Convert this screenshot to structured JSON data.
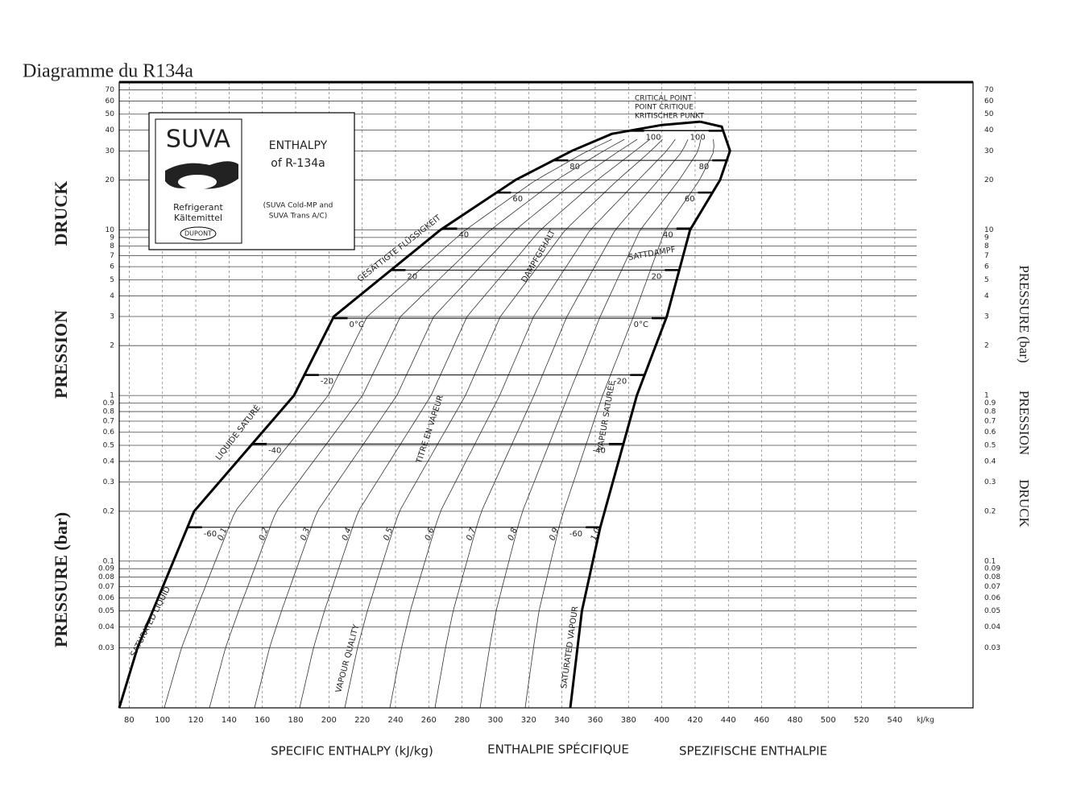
{
  "title": "Diagramme du R134a",
  "chart_data": {
    "type": "line",
    "log_y": true,
    "grid": true,
    "x_label": "SPECIFIC ENTHALPY (kJ/kg)",
    "x_label_fr": "ENTHALPIE SPÉCIFIQUE",
    "x_label_de": "SPEZIFISCHE ENTHALPIE",
    "x_unit": "kJ/kg",
    "y_label": "PRESSURE (bar)",
    "y_label_fr": "PRESSION",
    "y_label_de": "DRUCK",
    "xlim": [
      74,
      587
    ],
    "ylim": [
      0.013,
      78
    ],
    "xticks": [
      80,
      100,
      120,
      140,
      160,
      180,
      200,
      220,
      240,
      260,
      280,
      300,
      320,
      340,
      360,
      380,
      400,
      420,
      440,
      460,
      480,
      500,
      520,
      540
    ],
    "yticks": [
      0.03,
      0.04,
      0.05,
      0.06,
      0.07,
      0.08,
      0.09,
      0.1,
      0.2,
      0.3,
      0.4,
      0.5,
      0.6,
      0.7,
      0.8,
      0.9,
      1,
      2,
      3,
      4,
      5,
      6,
      7,
      8,
      9,
      10,
      20,
      30,
      40,
      50,
      60,
      70
    ],
    "series": [
      {
        "name": "SATURATED LIQUID",
        "color": "#000000",
        "x": [
          74,
          85,
          119,
          179,
          203,
          267,
          312,
          346,
          370,
          400,
          423
        ],
        "values": [
          0.013,
          0.03,
          0.2,
          1,
          3,
          10,
          20,
          30,
          38,
          43,
          45
        ]
      },
      {
        "name": "SATURATED VAPOUR",
        "color": "#000000",
        "x": [
          423,
          436,
          441,
          435,
          417,
          403,
          385,
          363,
          352,
          345
        ],
        "values": [
          45,
          42,
          30,
          20,
          10,
          3,
          1,
          0.16,
          0.05,
          0.013
        ]
      }
    ],
    "quality": [
      0.1,
      0.2,
      0.3,
      0.4,
      0.5,
      0.6,
      0.7,
      0.8,
      0.9,
      {
        "value": 1,
        "label": "1.0"
      }
    ],
    "isotherms": [
      {
        "label": "-60",
        "p": 0.16
      },
      {
        "label": "-40",
        "p": 0.51
      },
      {
        "label": "-20",
        "p": 1.33
      },
      {
        "label": "0°C",
        "p": 2.93
      },
      {
        "label": "20",
        "p": 5.72
      },
      {
        "label": "40",
        "p": 10.2
      },
      {
        "label": "60",
        "p": 16.8
      },
      {
        "label": "80",
        "p": 26.3
      },
      {
        "label": "100",
        "p": 39.7
      }
    ],
    "annotations": {
      "liquid_fr": "LIQUIDE SATURÉ",
      "liquid_de": "GESÄTTIGTE FLÜSSIGKEIT",
      "vapour_fr": "VAPEUR SATURÉE",
      "vapour_de": "SATTDAMPF",
      "quality_en": "VAPOUR QUALITY",
      "quality_fr": "TITRE EN VAPEUR",
      "quality_de": "DAMPFGEHALT",
      "critical_en": "CRITICAL POINT",
      "critical_fr": "POINT CRITIQUE",
      "critical_de": "KRITISCHER PUNKT"
    }
  },
  "legend_box": {
    "brand": "SUVA",
    "line1": "Refrigerant",
    "line2": "Kältemittel",
    "maker": "DUPONT",
    "title1": "ENTHALPY",
    "title2": "of R-134a",
    "note1": "(SUVA Cold-MP and",
    "note2": "SUVA Trans A/C)"
  }
}
